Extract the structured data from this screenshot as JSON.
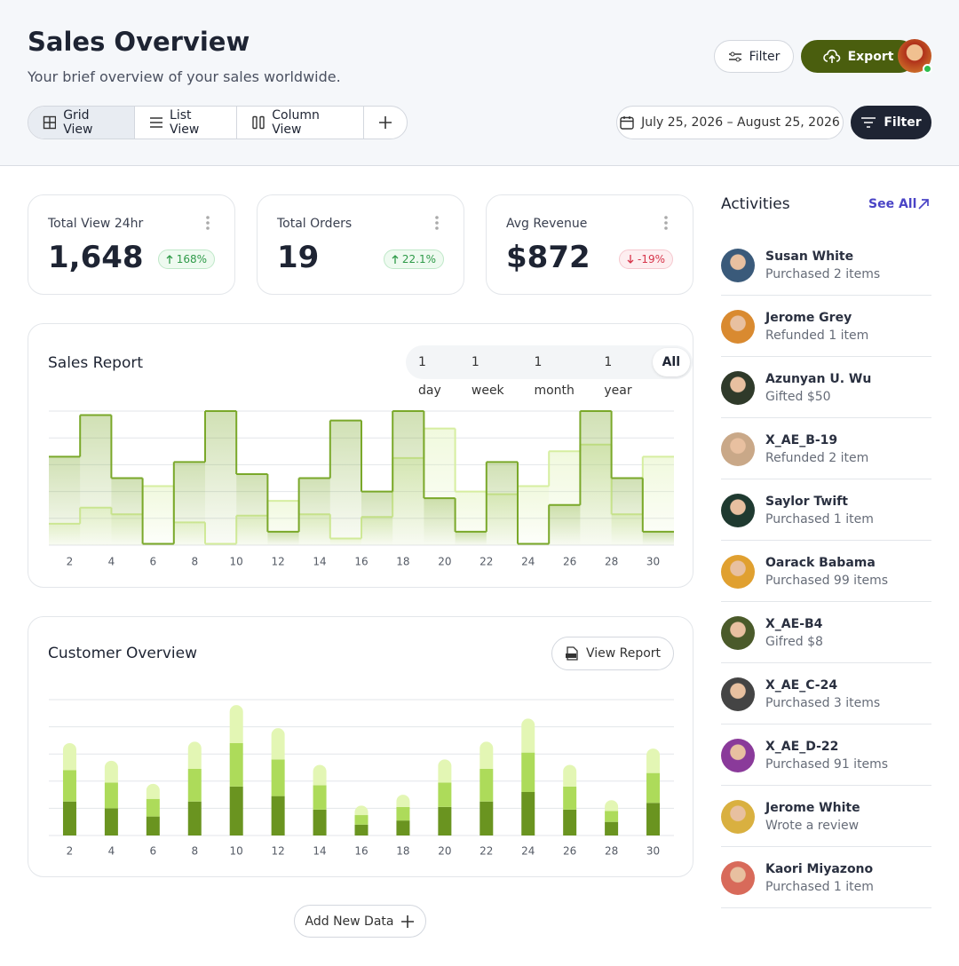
{
  "header": {
    "title": "Sales Overview",
    "subtitle": "Your brief overview of your sales worldwide.",
    "filter": "Filter",
    "export": "Export",
    "views": [
      "Grid View",
      "List View",
      "Column View"
    ],
    "active_view": 0,
    "date_range": "July 25, 2026 – August 25, 2026",
    "filter_dark": "Filter"
  },
  "stats": [
    {
      "label": "Total View 24hr",
      "value": "1,648",
      "change": "168%",
      "trend": "up"
    },
    {
      "label": "Total Orders",
      "value": "19",
      "change": "22.1%",
      "trend": "up"
    },
    {
      "label": "Avg Revenue",
      "value": "$872",
      "change": "-19%",
      "trend": "down"
    }
  ],
  "sales_report": {
    "title": "Sales Report",
    "ranges": [
      "1 day",
      "1 week",
      "1 month",
      "1 year",
      "All"
    ],
    "active_range": 4,
    "chart_data": {
      "type": "step",
      "x": [
        1,
        2.5,
        4,
        5.5,
        7,
        8.5,
        10,
        11.5,
        13,
        14.5,
        16,
        17.5,
        19,
        20.5,
        22,
        23.5,
        25,
        26.5,
        28,
        29.5
      ],
      "xlim": [
        1,
        31
      ],
      "xticks": [
        2,
        4,
        6,
        8,
        10,
        12,
        14,
        16,
        18,
        20,
        22,
        24,
        26,
        28,
        30
      ],
      "ylim": [
        0,
        100
      ],
      "grid": true,
      "series": [
        {
          "color": "#d6eea0",
          "values": [
            16,
            28,
            23,
            44,
            17,
            1,
            22,
            33,
            23,
            5,
            21,
            65,
            87,
            40,
            38,
            44,
            70,
            75,
            23,
            66
          ]
        },
        {
          "color": "#7aa82a",
          "values": [
            66,
            97,
            50,
            1,
            62,
            100,
            53,
            10,
            50,
            93,
            40,
            100,
            35,
            10,
            62,
            1,
            30,
            100,
            50,
            10
          ]
        }
      ]
    }
  },
  "customer_overview": {
    "title": "Customer Overview",
    "button": "View Report",
    "chart_data": {
      "type": "stacked_bar",
      "x": [
        2,
        4,
        6,
        8,
        10,
        12,
        14,
        16,
        18,
        20,
        22,
        24,
        26,
        28,
        30
      ],
      "xlim": [
        1,
        31
      ],
      "xticks": [
        2,
        4,
        6,
        8,
        10,
        12,
        14,
        16,
        18,
        20,
        22,
        24,
        26,
        28,
        30
      ],
      "ylim": [
        0,
        100
      ],
      "grid": true,
      "series": [
        {
          "color": "#6a9420",
          "values": [
            25,
            20,
            14,
            25,
            36,
            29,
            19,
            8,
            11,
            21,
            25,
            32,
            19,
            10,
            24
          ]
        },
        {
          "color": "#addb5a",
          "values": [
            23,
            19,
            13,
            24,
            32,
            27,
            18,
            7,
            10,
            18,
            24,
            29,
            17,
            8,
            22
          ]
        },
        {
          "color": "#e3f6b4",
          "values": [
            20,
            16,
            11,
            20,
            28,
            23,
            15,
            7,
            9,
            17,
            20,
            25,
            16,
            8,
            18
          ]
        }
      ]
    }
  },
  "add_button": "Add New Data",
  "activities": {
    "title": "Activities",
    "see_all": "See All",
    "items": [
      {
        "name": "Susan White",
        "action": "Purchased 2 items"
      },
      {
        "name": "Jerome Grey",
        "action": "Refunded 1 item"
      },
      {
        "name": "Azunyan U. Wu",
        "action": "Gifted $50"
      },
      {
        "name": "X_AE_B-19",
        "action": "Refunded 2 item"
      },
      {
        "name": "Saylor Twift",
        "action": "Purchased 1 item"
      },
      {
        "name": "Oarack Babama",
        "action": "Purchased 99 items"
      },
      {
        "name": "X_AE-B4",
        "action": "Gifred $8"
      },
      {
        "name": "X_AE_C-24",
        "action": "Purchased 3 items"
      },
      {
        "name": "X_AE_D-22",
        "action": "Purchased 91 items"
      },
      {
        "name": "Jerome White",
        "action": "Wrote a review"
      },
      {
        "name": "Kaori Miyazono",
        "action": "Purchased 1 item"
      }
    ]
  }
}
